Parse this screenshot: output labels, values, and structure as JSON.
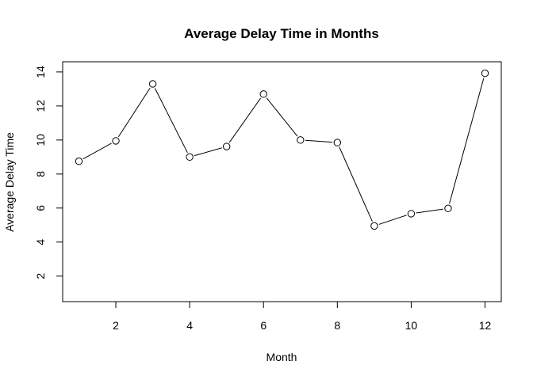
{
  "chart_data": {
    "type": "line",
    "title": "Average Delay Time in Months",
    "xlabel": "Month",
    "ylabel": "Average Delay Time",
    "x": [
      1,
      2,
      3,
      4,
      5,
      6,
      7,
      8,
      9,
      10,
      11,
      12
    ],
    "series": [
      {
        "values": [
          8.75,
          9.95,
          13.3,
          9.0,
          9.62,
          12.7,
          10.0,
          9.85,
          4.95,
          5.67,
          5.98,
          13.92
        ]
      }
    ],
    "xticks": [
      2,
      4,
      6,
      8,
      10,
      12
    ],
    "yticks": [
      2,
      4,
      6,
      8,
      10,
      12,
      14
    ],
    "xlim": [
      0.56,
      12.44
    ],
    "ylim": [
      0.5,
      14.6
    ],
    "marker": "open-circle",
    "line_color": "#000000",
    "grid": false,
    "legend": "none"
  }
}
